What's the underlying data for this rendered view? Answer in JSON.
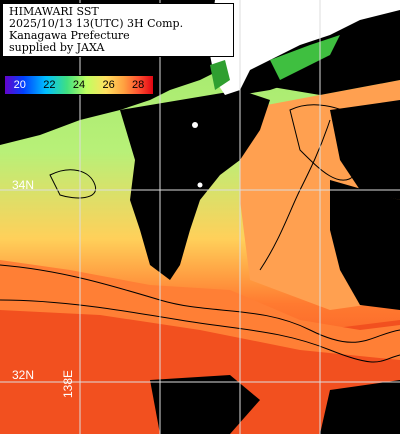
{
  "title": {
    "line1": "HIMAWARI SST",
    "line2": "2025/10/13 13(UTC) 3H Comp.",
    "line3": "Kanagawa Prefecture",
    "line4": "supplied by JAXA"
  },
  "legend": {
    "ticks": [
      "20",
      "22",
      "24",
      "26",
      "28"
    ],
    "colors": [
      "#6a00c8",
      "#0040ff",
      "#00c0ff",
      "#40e080",
      "#c0ff60",
      "#ffe060",
      "#ffa040",
      "#ff5030",
      "#e00010"
    ]
  },
  "grid": {
    "lat_34": "34N",
    "lat_32": "32N",
    "lon_138": "138E"
  },
  "map": {
    "land_color": "#ffffff",
    "cloud_color": "#000000",
    "grid_color": "#dddddd"
  }
}
